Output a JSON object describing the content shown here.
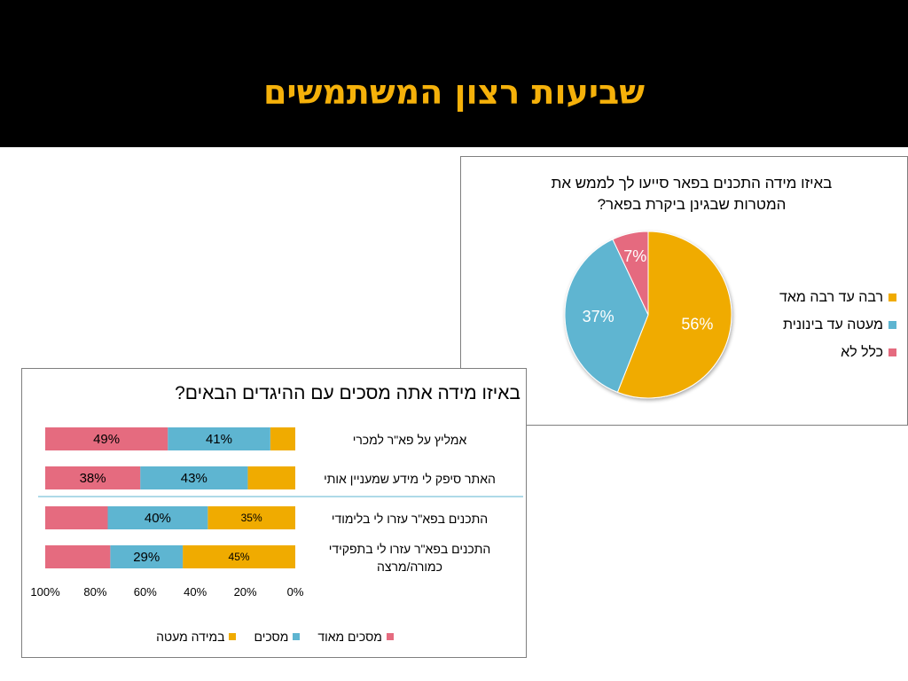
{
  "slide": {
    "title": "שביעות רצון המשתמשים"
  },
  "colors": {
    "orange": "#F0AB00",
    "blue": "#5EB5D1",
    "pink": "#E56B7F"
  },
  "chart_data": [
    {
      "type": "pie",
      "title": "באיזו מידה התכנים בפאר סייעו לך לממש את המטרות שבגינן ביקרת בפאר?",
      "title_lines": [
        "באיזו מידה התכנים בפאר סייעו לך לממש את",
        "המטרות שבגינן ביקרת בפאר?"
      ],
      "categories": [
        "רבה עד רבה מאד",
        "מעטה עד בינונית",
        "כלל לא"
      ],
      "values": [
        56,
        37,
        7
      ],
      "data_labels": [
        "56%",
        "37%",
        "7%"
      ],
      "colors": [
        "#F0AB00",
        "#5EB5D1",
        "#E56B7F"
      ],
      "legend_position": "right"
    },
    {
      "type": "bar",
      "orientation": "horizontal-stacked-100",
      "title": "באיזו מידה אתה מסכים עם ההיגדים הבאים?",
      "categories": [
        "אמליץ  על פא\"ר למכרי",
        "האתר סיפק לי מידע שמעניין אותי",
        "התכנים בפא\"ר עזרו לי בלימודי",
        "התכנים בפא\"ר עזרו לי בתפקידי כמורה/מרצה"
      ],
      "category_lines": [
        [
          "אמליץ  על פא\"ר למכרי"
        ],
        [
          "האתר סיפק לי מידע שמעניין אותי"
        ],
        [
          "התכנים בפא\"ר עזרו לי בלימודי"
        ],
        [
          "התכנים בפא\"ר עזרו לי בתפקידי",
          "כמורה/מרצה"
        ]
      ],
      "series": [
        {
          "name": "במידה מעטה",
          "color": "#F0AB00",
          "values": [
            10,
            19,
            35,
            45
          ],
          "labels": [
            "",
            "",
            "35%",
            "45%"
          ]
        },
        {
          "name": "מסכים",
          "color": "#5EB5D1",
          "values": [
            41,
            43,
            40,
            29
          ],
          "labels": [
            "41%",
            "43%",
            "40%",
            "29%"
          ]
        },
        {
          "name": "מסכים מאוד",
          "color": "#E56B7F",
          "values": [
            49,
            38,
            25,
            26
          ],
          "labels": [
            "49%",
            "38%",
            "",
            ""
          ]
        }
      ],
      "x_axis": {
        "reversed": true,
        "range": [
          0,
          100
        ],
        "tick_labels": [
          "100%",
          "80%",
          "60%",
          "40%",
          "20%",
          "0%"
        ]
      },
      "legend_position": "bottom"
    }
  ]
}
